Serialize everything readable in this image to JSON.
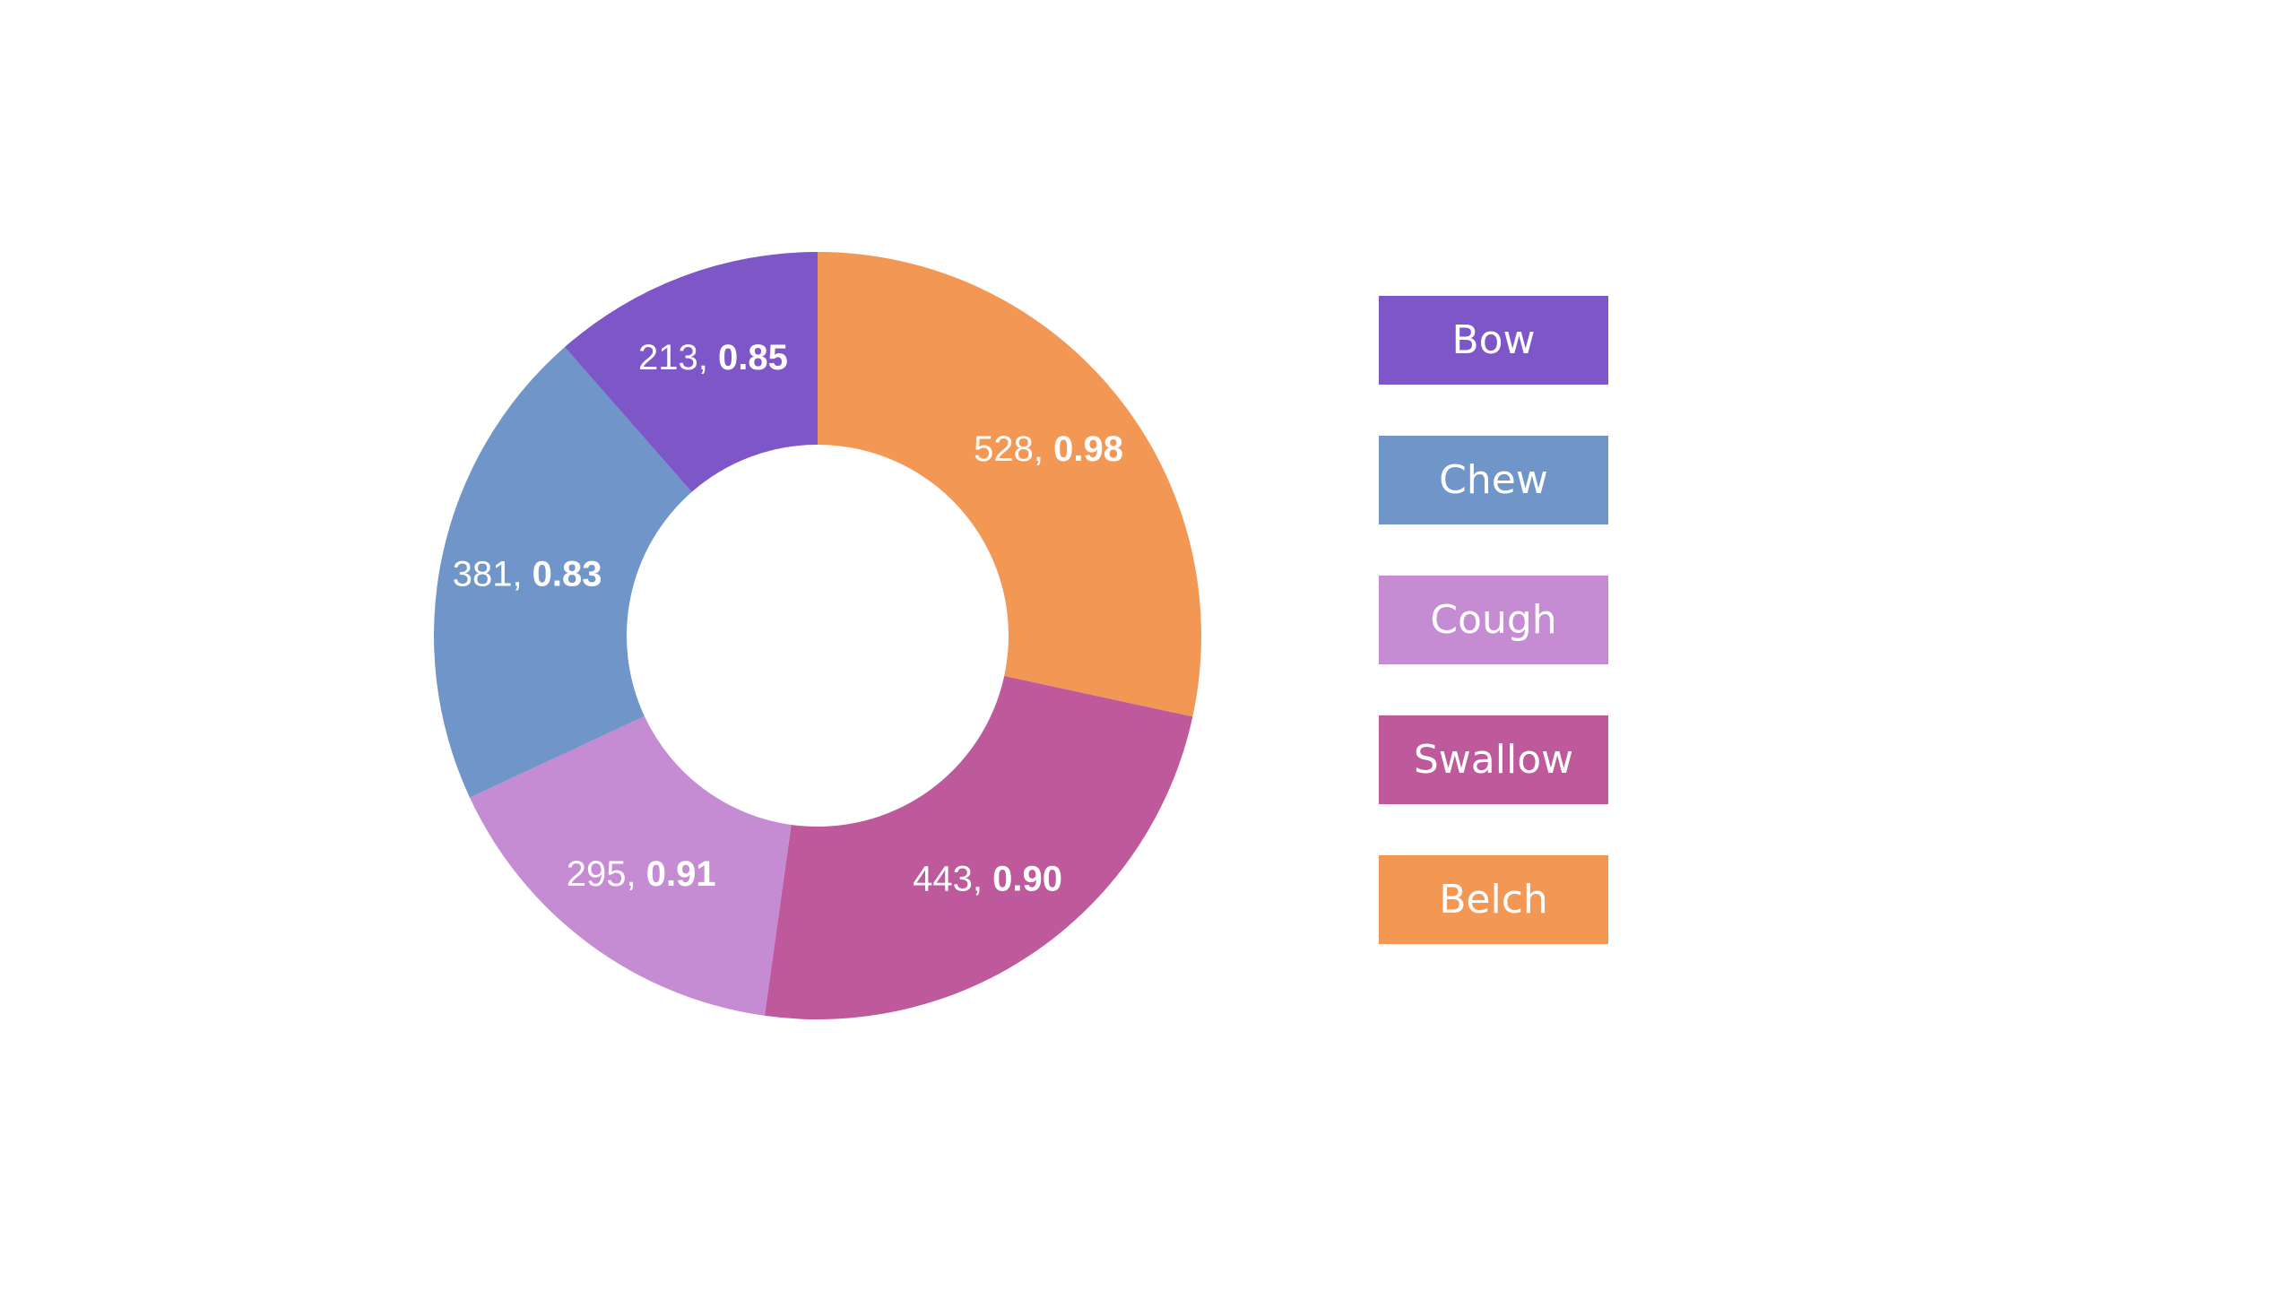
{
  "chart_data": {
    "type": "donut",
    "slices": [
      {
        "name": "Belch",
        "value": 528,
        "ratio": "0.98",
        "color": "#F39755"
      },
      {
        "name": "Swallow",
        "value": 443,
        "ratio": "0.90",
        "color": "#BE599B"
      },
      {
        "name": "Cough",
        "value": 295,
        "ratio": "0.91",
        "color": "#C58CD4"
      },
      {
        "name": "Chew",
        "value": 381,
        "ratio": "0.83",
        "color": "#6F95C9"
      },
      {
        "name": "Bow",
        "value": 213,
        "ratio": "0.85",
        "color": "#7D56C7"
      }
    ],
    "legend": [
      {
        "label": "Bow",
        "color": "#7D56C7"
      },
      {
        "label": "Chew",
        "color": "#6F95C9"
      },
      {
        "label": "Cough",
        "color": "#C58CD4"
      },
      {
        "label": "Swallow",
        "color": "#BE599B"
      },
      {
        "label": "Belch",
        "color": "#F39755"
      }
    ],
    "start": "12 o'clock",
    "direction": "clockwise",
    "legend_position": "right"
  }
}
